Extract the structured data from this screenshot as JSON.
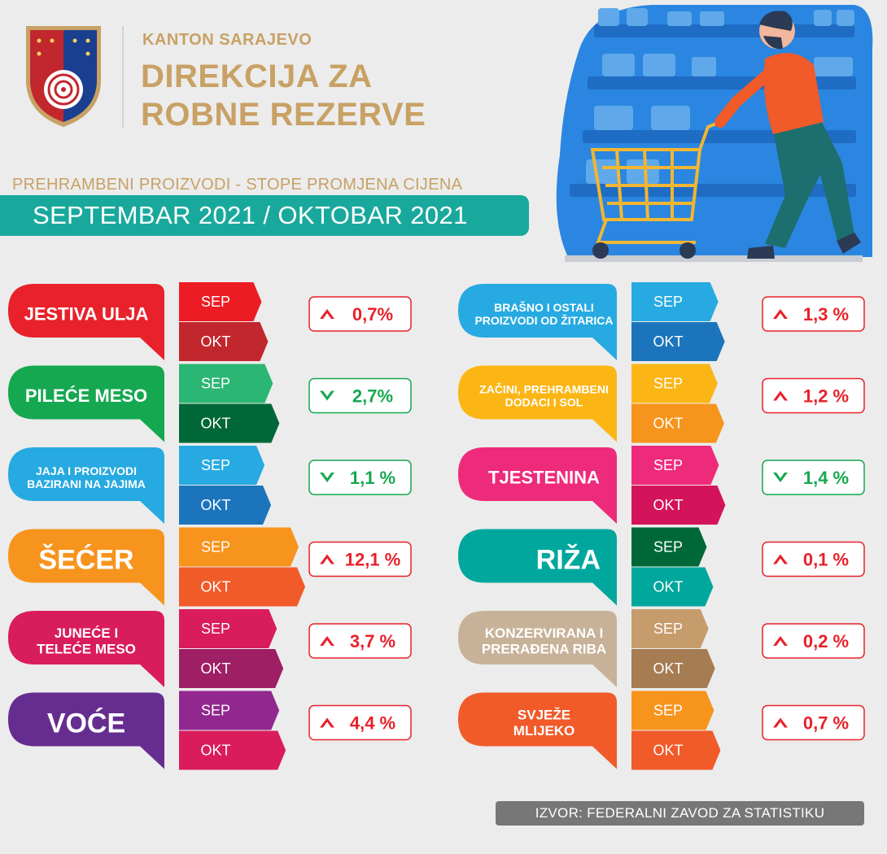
{
  "header": {
    "org_line1": "KANTON SARAJEVO",
    "org_line2": "DIREKCIJA ZA",
    "org_line3": "ROBNE REZERVE",
    "subtitle": "PREHRAMBENI PROIZVODI - STOPE PROMJENA CIJENA",
    "period": "SEPTEMBAR 2021 / OKTOBAR 2021"
  },
  "source": "IZVOR: FEDERALNI ZAVOD ZA STATISTIKU",
  "chart_data": {
    "type": "bar",
    "title": "PREHRAMBENI PROIZVODI - STOPE PROMJENA CIJENA",
    "subtitle": "SEPTEMBAR 2021 / OKTOBAR 2021",
    "months": [
      "SEP",
      "OKT"
    ],
    "categories": [
      {
        "lines": [
          "JESTIVA ULJA"
        ],
        "change": 0.7,
        "change_label": "0,7%",
        "direction": "up",
        "color": "#e8212a",
        "sep_color": "#ed1c24",
        "okt_color": "#c1272d"
      },
      {
        "lines": [
          "PILEĆE MESO"
        ],
        "change": -2.7,
        "change_label": "2,7%",
        "direction": "down",
        "color": "#15a850",
        "sep_color": "#2bb673",
        "okt_color": "#006838"
      },
      {
        "lines": [
          "JAJA I PROIZVODI",
          "BAZIRANI NA JAJIMA"
        ],
        "change": -1.1,
        "change_label": "1,1 %",
        "direction": "down",
        "color": "#27aae1",
        "sep_color": "#27aae1",
        "okt_color": "#1c75bc"
      },
      {
        "lines": [
          "ŠEĆER"
        ],
        "change": 12.1,
        "change_label": "12,1 %",
        "direction": "up",
        "color": "#f7941d",
        "sep_color": "#f7941d",
        "okt_color": "#f15a29"
      },
      {
        "lines": [
          "JUNEĆE I",
          "TELEĆE MESO"
        ],
        "change": 3.7,
        "change_label": "3,7 %",
        "direction": "up",
        "color": "#d91c5c",
        "sep_color": "#d91c5c",
        "okt_color": "#9e1f63"
      },
      {
        "lines": [
          "VOĆE"
        ],
        "change": 4.4,
        "change_label": "4,4 %",
        "direction": "up",
        "color": "#662d91",
        "sep_color": "#92278f",
        "okt_color": "#da1c5c"
      },
      {
        "lines": [
          "BRAŠNO I OSTALI",
          "PROIZVODI OD ŽITARICA"
        ],
        "change": 1.3,
        "change_label": "1,3 %",
        "direction": "up",
        "color": "#27aae1",
        "sep_color": "#27aae1",
        "okt_color": "#1c75bc"
      },
      {
        "lines": [
          "ZAČINI, PREHRAMBENI",
          "DODACI I SOL"
        ],
        "change": 1.2,
        "change_label": "1,2 %",
        "direction": "up",
        "color": "#fbb615",
        "sep_color": "#fbb615",
        "okt_color": "#f7941d"
      },
      {
        "lines": [
          "TJESTENINA"
        ],
        "change": -1.4,
        "change_label": "1,4 %",
        "direction": "down",
        "color": "#ee2a7b",
        "sep_color": "#ee2a7b",
        "okt_color": "#d4145a"
      },
      {
        "lines": [
          "RIŽA"
        ],
        "change": 0.1,
        "change_label": "0,1 %",
        "direction": "up",
        "color": "#00a79d",
        "sep_color": "#006838",
        "okt_color": "#00a79d"
      },
      {
        "lines": [
          "KONZERVIRANA I",
          "PRERAĐENA RIBA"
        ],
        "change": 0.2,
        "change_label": "0,2 %",
        "direction": "up",
        "color": "#c7b299",
        "sep_color": "#c69c6d",
        "okt_color": "#a67c52"
      },
      {
        "lines": [
          "SVJEŽE",
          "MLIJEKO"
        ],
        "change": 0.7,
        "change_label": "0,7 %",
        "direction": "up",
        "color": "#f15a29",
        "sep_color": "#f7941d",
        "okt_color": "#f15a29"
      }
    ],
    "up_color": "#e8212a",
    "down_color": "#15a850"
  }
}
